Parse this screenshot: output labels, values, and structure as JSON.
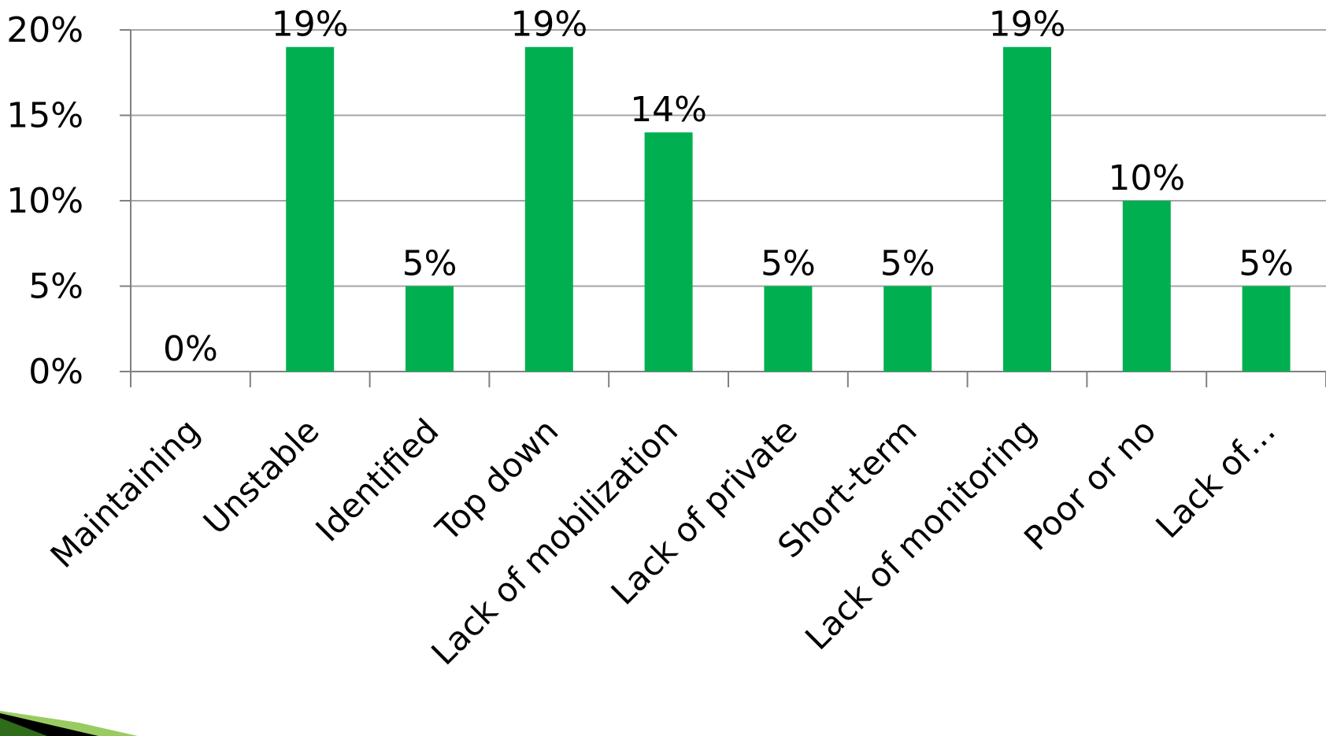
{
  "chart_data": {
    "type": "bar",
    "categories": [
      "Maintaining",
      "Unstable",
      "Identified",
      "Top down",
      "Lack of mobilization",
      "Lack of private",
      "Short-term",
      "Lack of monitoring",
      "Poor or no",
      "Lack of…"
    ],
    "values": [
      0,
      19,
      5,
      19,
      14,
      5,
      5,
      19,
      10,
      5
    ],
    "data_labels": [
      "0%",
      "19%",
      "5%",
      "19%",
      "14%",
      "5%",
      "5%",
      "19%",
      "10%",
      "5%"
    ],
    "y_ticks": [
      "0%",
      "5%",
      "10%",
      "15%",
      "20%"
    ],
    "y_tick_values": [
      0,
      5,
      10,
      15,
      20
    ],
    "ylim": [
      0,
      20
    ],
    "grid": true,
    "legend": "none",
    "bar_color": "#00b050",
    "title": "",
    "xlabel": "",
    "ylabel": ""
  }
}
